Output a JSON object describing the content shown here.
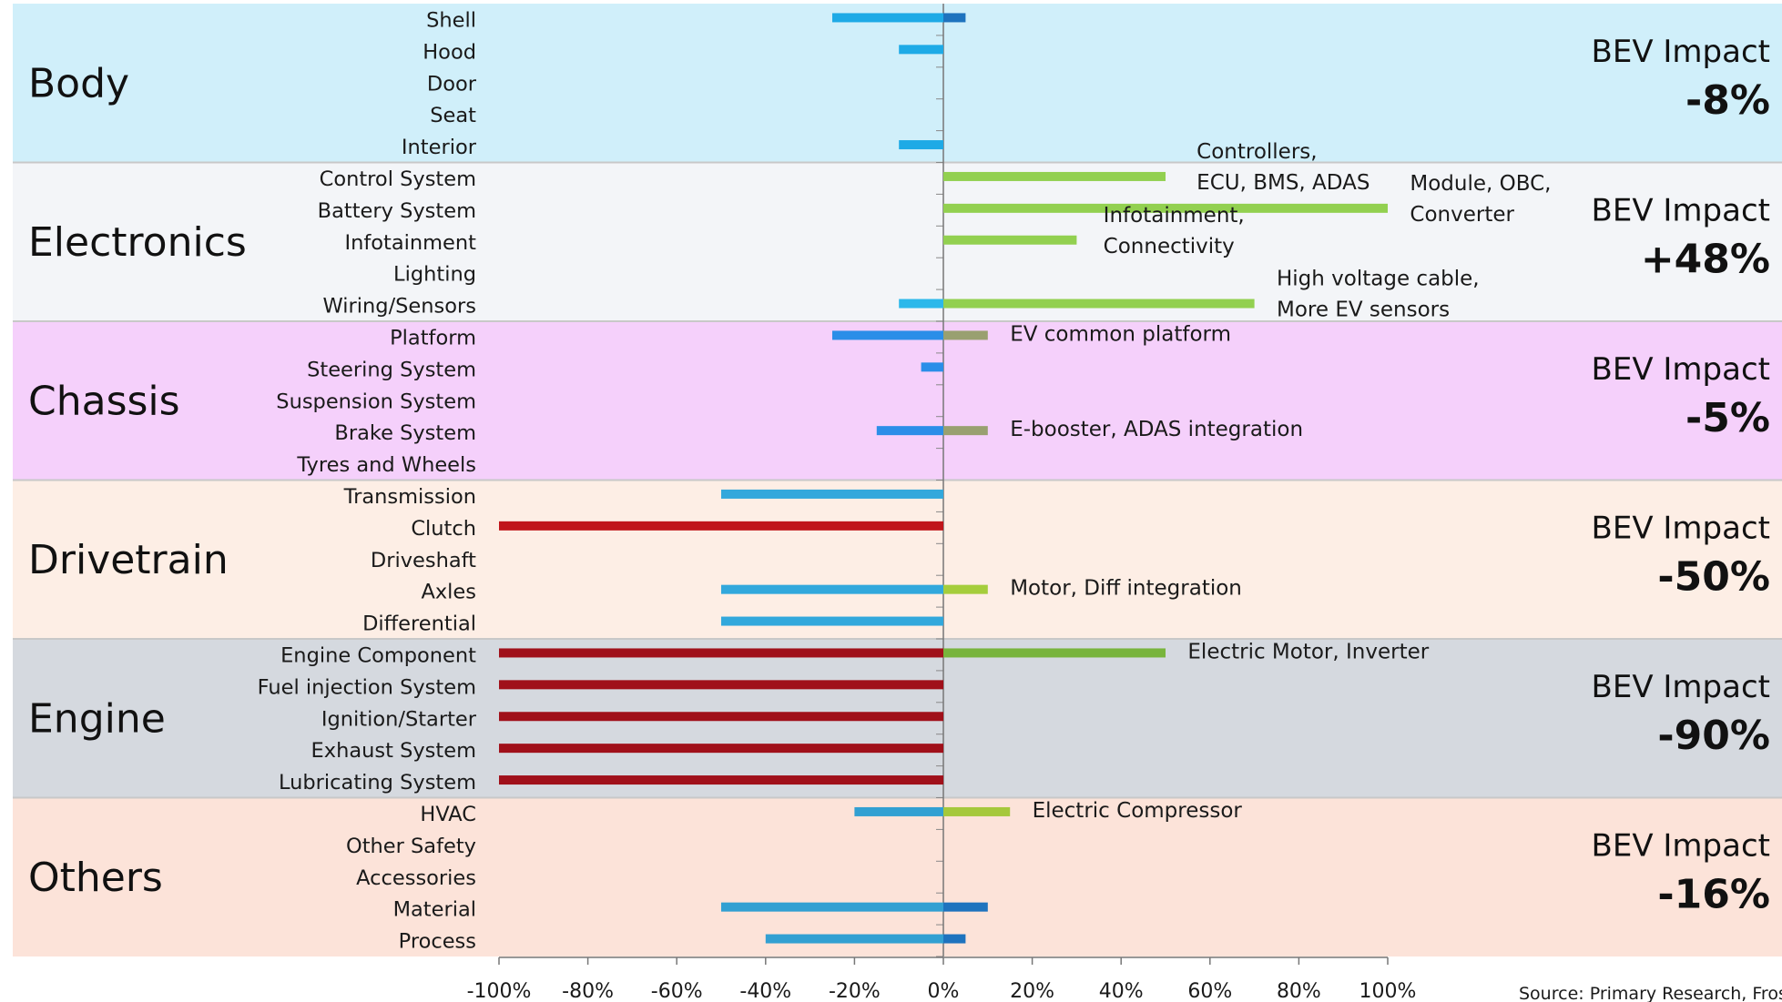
{
  "chart_data": {
    "type": "bar",
    "orientation": "horizontal",
    "xlim": [
      -100,
      100
    ],
    "x_ticks": [
      "-100%",
      "-80%",
      "-60%",
      "-40%",
      "-20%",
      "0%",
      "20%",
      "40%",
      "60%",
      "80%",
      "100%"
    ],
    "source": "Source: Primary Research, Fros",
    "impact_label": "BEV Impact",
    "groups": [
      {
        "name": "Body",
        "bg": "#d0effa",
        "impact": "-8%",
        "rows": [
          {
            "label": "Shell",
            "bars": [
              {
                "value": -25,
                "color": "#1eaae6"
              },
              {
                "value": 5,
                "color": "#1e73be"
              }
            ]
          },
          {
            "label": "Hood",
            "bars": [
              {
                "value": -10,
                "color": "#1eaae6"
              }
            ]
          },
          {
            "label": "Door",
            "bars": []
          },
          {
            "label": "Seat",
            "bars": []
          },
          {
            "label": "Interior",
            "bars": [
              {
                "value": -10,
                "color": "#1eaae6"
              }
            ]
          }
        ]
      },
      {
        "name": "Electronics",
        "bg": "#f3f5f8",
        "impact": "+48%",
        "rows": [
          {
            "label": "Control System",
            "bars": [
              {
                "value": 50,
                "color": "#92d050"
              }
            ]
          },
          {
            "label": "Battery System",
            "bars": [
              {
                "value": 100,
                "color": "#92d050"
              }
            ]
          },
          {
            "label": "Infotainment",
            "bars": [
              {
                "value": 30,
                "color": "#92d050"
              }
            ]
          },
          {
            "label": "Lighting",
            "bars": []
          },
          {
            "label": "Wiring/Sensors",
            "bars": [
              {
                "value": -10,
                "color": "#2cb8ea"
              },
              {
                "value": 70,
                "color": "#92d050"
              }
            ]
          }
        ],
        "annotations": [
          {
            "row": 0,
            "x_value": 57,
            "lines": [
              "Controllers,",
              "ECU, BMS, ADAS"
            ]
          },
          {
            "row": 1,
            "x_value": 105,
            "lines": [
              "Module, OBC,",
              "Converter"
            ]
          },
          {
            "row": 2,
            "x_value": 36,
            "lines": [
              "Infotainment,",
              "Connectivity"
            ]
          },
          {
            "row": 4,
            "x_value": 75,
            "lines": [
              "High voltage cable,",
              "More EV sensors"
            ]
          }
        ]
      },
      {
        "name": "Chassis",
        "bg": "#f5d0fb",
        "impact": "-5%",
        "rows": [
          {
            "label": "Platform",
            "bars": [
              {
                "value": -25,
                "color": "#2b8ee8"
              },
              {
                "value": 10,
                "color": "#99a070"
              }
            ]
          },
          {
            "label": "Steering System",
            "bars": [
              {
                "value": -5,
                "color": "#2b8ee8"
              }
            ]
          },
          {
            "label": "Suspension System",
            "bars": []
          },
          {
            "label": "Brake System",
            "bars": [
              {
                "value": -15,
                "color": "#2b8ee8"
              },
              {
                "value": 10,
                "color": "#99a070"
              }
            ]
          },
          {
            "label": "Tyres and Wheels",
            "bars": []
          }
        ],
        "annotations": [
          {
            "row": 0,
            "x_value": 15,
            "lines": [
              "EV common platform"
            ]
          },
          {
            "row": 3,
            "x_value": 15,
            "lines": [
              "E-booster, ADAS integration"
            ]
          }
        ]
      },
      {
        "name": "Drivetrain",
        "bg": "#fdeee5",
        "impact": "-50%",
        "rows": [
          {
            "label": "Transmission",
            "bars": [
              {
                "value": -50,
                "color": "#32a8dc"
              }
            ]
          },
          {
            "label": "Clutch",
            "bars": [
              {
                "value": -100,
                "color": "#c0151b"
              }
            ]
          },
          {
            "label": "Driveshaft",
            "bars": []
          },
          {
            "label": "Axles",
            "bars": [
              {
                "value": -50,
                "color": "#32a8dc"
              },
              {
                "value": 10,
                "color": "#a5cd3c"
              }
            ]
          },
          {
            "label": "Differential",
            "bars": [
              {
                "value": -50,
                "color": "#32a8dc"
              }
            ]
          }
        ],
        "annotations": [
          {
            "row": 3,
            "x_value": 15,
            "lines": [
              "Motor, Diff integration"
            ]
          }
        ]
      },
      {
        "name": "Engine",
        "bg": "#d5d9df",
        "impact": "-90%",
        "rows": [
          {
            "label": "Engine Component",
            "bars": [
              {
                "value": -100,
                "color": "#a0101a"
              },
              {
                "value": 50,
                "color": "#78b43c"
              }
            ]
          },
          {
            "label": "Fuel injection System",
            "bars": [
              {
                "value": -100,
                "color": "#a0101a"
              }
            ]
          },
          {
            "label": "Ignition/Starter",
            "bars": [
              {
                "value": -100,
                "color": "#a0101a"
              }
            ]
          },
          {
            "label": "Exhaust System",
            "bars": [
              {
                "value": -100,
                "color": "#a0101a"
              }
            ]
          },
          {
            "label": "Lubricating System",
            "bars": [
              {
                "value": -100,
                "color": "#a0101a"
              }
            ]
          }
        ],
        "annotations": [
          {
            "row": 0,
            "x_value": 55,
            "lines": [
              "Electric Motor, Inverter"
            ]
          }
        ]
      },
      {
        "name": "Others",
        "bg": "#fce3d9",
        "impact": "-16%",
        "rows": [
          {
            "label": "HVAC",
            "bars": [
              {
                "value": -20,
                "color": "#32a0d2"
              },
              {
                "value": 15,
                "color": "#a5c83c"
              }
            ]
          },
          {
            "label": "Other Safety",
            "bars": []
          },
          {
            "label": "Accessories",
            "bars": []
          },
          {
            "label": "Material",
            "bars": [
              {
                "value": -50,
                "color": "#32a0d2"
              },
              {
                "value": 10,
                "color": "#1e73be"
              }
            ]
          },
          {
            "label": "Process",
            "bars": [
              {
                "value": -40,
                "color": "#32a0d2"
              },
              {
                "value": 5,
                "color": "#1e73be"
              }
            ]
          }
        ],
        "annotations": [
          {
            "row": 0,
            "x_value": 20,
            "lines": [
              "Electric Compressor"
            ]
          }
        ]
      }
    ]
  }
}
